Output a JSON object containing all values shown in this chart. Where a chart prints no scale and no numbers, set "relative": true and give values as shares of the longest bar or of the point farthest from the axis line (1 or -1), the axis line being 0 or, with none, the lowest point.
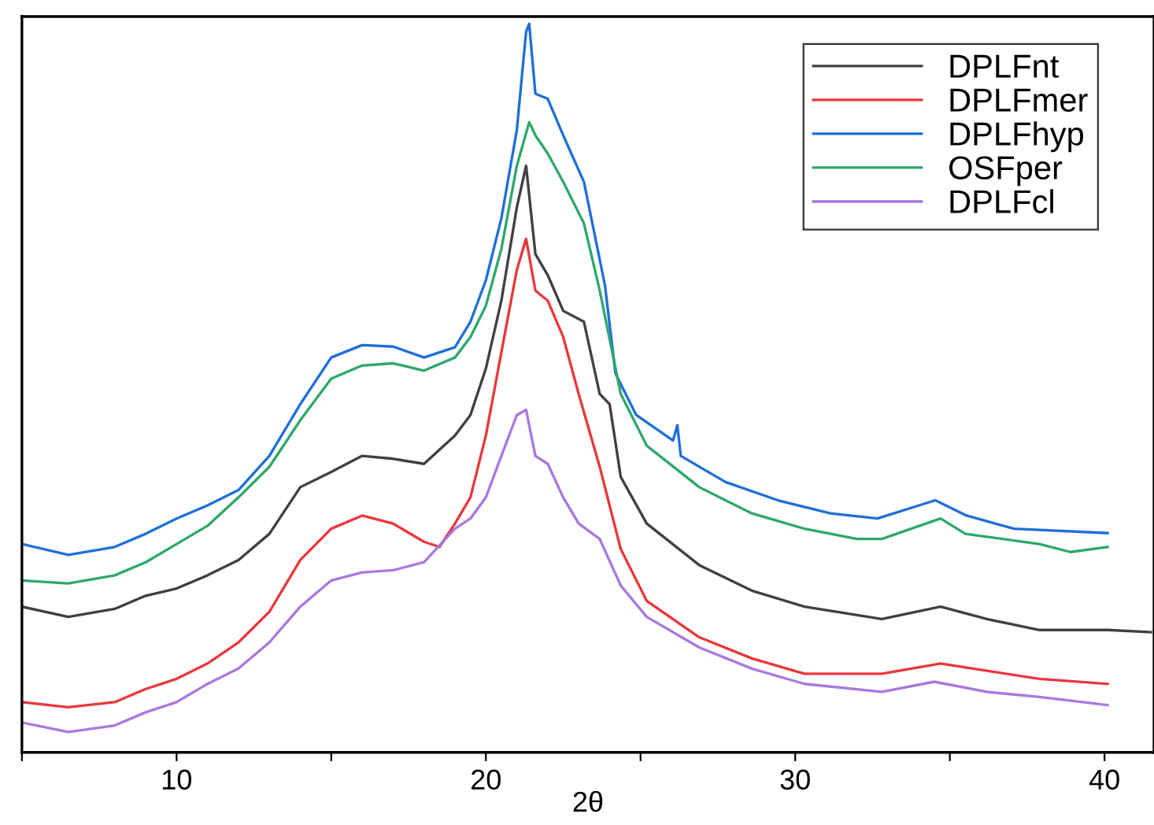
{
  "chart_data": {
    "type": "line",
    "xlabel": "2θ",
    "relative": true,
    "xlim": [
      5,
      41.6
    ],
    "xticks": [
      {
        "value": 5,
        "label": null
      },
      10,
      {
        "value": 15,
        "label": null
      },
      20,
      {
        "value": 25,
        "label": null
      },
      30,
      {
        "value": 35,
        "label": null
      },
      40
    ],
    "grid": false,
    "legend": "top right",
    "marker": "none",
    "line_style": "solid",
    "series": [
      {
        "name": "DPLFnt",
        "color": "#404040",
        "x": [
          5,
          6.5,
          8,
          9,
          10,
          11,
          12,
          13,
          14,
          15,
          16,
          17,
          18,
          19,
          19.5,
          20,
          20.5,
          21,
          21.3,
          21.6,
          22,
          22.5,
          23.17,
          23.68,
          24,
          24.36,
          25.2,
          26.9,
          28.6,
          30.3,
          32.8,
          34.7,
          36.2,
          37.9,
          40.1,
          41.5
        ],
        "values": [
          0.2,
          0.186,
          0.197,
          0.215,
          0.225,
          0.243,
          0.264,
          0.3,
          0.364,
          0.385,
          0.407,
          0.403,
          0.396,
          0.435,
          0.463,
          0.527,
          0.62,
          0.748,
          0.805,
          0.684,
          0.655,
          0.606,
          0.591,
          0.492,
          0.478,
          0.378,
          0.314,
          0.257,
          0.222,
          0.2,
          0.183,
          0.2,
          0.183,
          0.168,
          0.168,
          0.165
        ]
      },
      {
        "name": "DPLFmer",
        "color": "#e8383d",
        "x": [
          5,
          6.5,
          8,
          9,
          10,
          11,
          12,
          13,
          14,
          15,
          16,
          17,
          18,
          18.5,
          19,
          19.5,
          20,
          20.5,
          21,
          21.3,
          21.6,
          22,
          22.5,
          23,
          23.68,
          24.36,
          25.2,
          26.9,
          28.6,
          30.3,
          32.8,
          34.7,
          36.2,
          37.9,
          40.1
        ],
        "values": [
          0.069,
          0.062,
          0.069,
          0.087,
          0.101,
          0.122,
          0.151,
          0.193,
          0.264,
          0.307,
          0.325,
          0.314,
          0.289,
          0.282,
          0.314,
          0.35,
          0.435,
          0.549,
          0.662,
          0.705,
          0.634,
          0.62,
          0.57,
          0.492,
          0.392,
          0.279,
          0.208,
          0.158,
          0.129,
          0.108,
          0.108,
          0.122,
          0.112,
          0.101,
          0.094
        ]
      },
      {
        "name": "DPLFhyp",
        "color": "#1f6fd8",
        "x": [
          5,
          6.5,
          8,
          9,
          10,
          11,
          12,
          13,
          14,
          15,
          16,
          17,
          18,
          19,
          19.5,
          20,
          20.5,
          21,
          21.3,
          21.4,
          21.6,
          22,
          22.5,
          23.17,
          23.85,
          24.19,
          24.86,
          26.05,
          26.19,
          26.3,
          27.75,
          29.44,
          31.14,
          32.66,
          34.53,
          35.54,
          37.07,
          40.1
        ],
        "values": [
          0.286,
          0.271,
          0.282,
          0.3,
          0.321,
          0.339,
          0.36,
          0.407,
          0.478,
          0.542,
          0.559,
          0.557,
          0.542,
          0.556,
          0.591,
          0.648,
          0.733,
          0.854,
          0.989,
          1.0,
          0.904,
          0.897,
          0.847,
          0.783,
          0.641,
          0.52,
          0.463,
          0.428,
          0.449,
          0.407,
          0.371,
          0.346,
          0.328,
          0.321,
          0.346,
          0.325,
          0.307,
          0.301
        ]
      },
      {
        "name": "OSFper",
        "color": "#2ea86a",
        "x": [
          5,
          6.5,
          8,
          9,
          10,
          11,
          12,
          13,
          14,
          15,
          16,
          17,
          18,
          19,
          19.5,
          20,
          20.5,
          21,
          21.4,
          21.6,
          22,
          22.5,
          23.17,
          23.68,
          24.36,
          25.2,
          26.9,
          28.6,
          30.3,
          32,
          32.8,
          34.7,
          35.5,
          37.9,
          38.9,
          40.1
        ],
        "values": [
          0.236,
          0.232,
          0.243,
          0.261,
          0.286,
          0.311,
          0.35,
          0.392,
          0.456,
          0.513,
          0.531,
          0.534,
          0.524,
          0.542,
          0.57,
          0.613,
          0.691,
          0.805,
          0.865,
          0.847,
          0.822,
          0.783,
          0.726,
          0.634,
          0.492,
          0.421,
          0.364,
          0.328,
          0.307,
          0.293,
          0.293,
          0.321,
          0.3,
          0.286,
          0.275,
          0.282
        ]
      },
      {
        "name": "DPLFcl",
        "color": "#a978e0",
        "x": [
          5,
          6.5,
          8,
          9,
          10,
          11,
          12,
          13,
          14,
          15,
          16,
          17,
          18,
          19,
          19.5,
          20,
          20.5,
          21,
          21.3,
          21.6,
          22,
          22.5,
          23,
          23.68,
          24.36,
          25.2,
          26.9,
          28.6,
          30.3,
          32.8,
          34.5,
          36.2,
          37.9,
          40.1
        ],
        "values": [
          0.041,
          0.028,
          0.037,
          0.055,
          0.069,
          0.094,
          0.115,
          0.151,
          0.2,
          0.236,
          0.247,
          0.25,
          0.261,
          0.307,
          0.321,
          0.35,
          0.407,
          0.463,
          0.47,
          0.407,
          0.396,
          0.35,
          0.314,
          0.293,
          0.229,
          0.186,
          0.144,
          0.115,
          0.094,
          0.083,
          0.097,
          0.083,
          0.076,
          0.065
        ]
      }
    ]
  }
}
